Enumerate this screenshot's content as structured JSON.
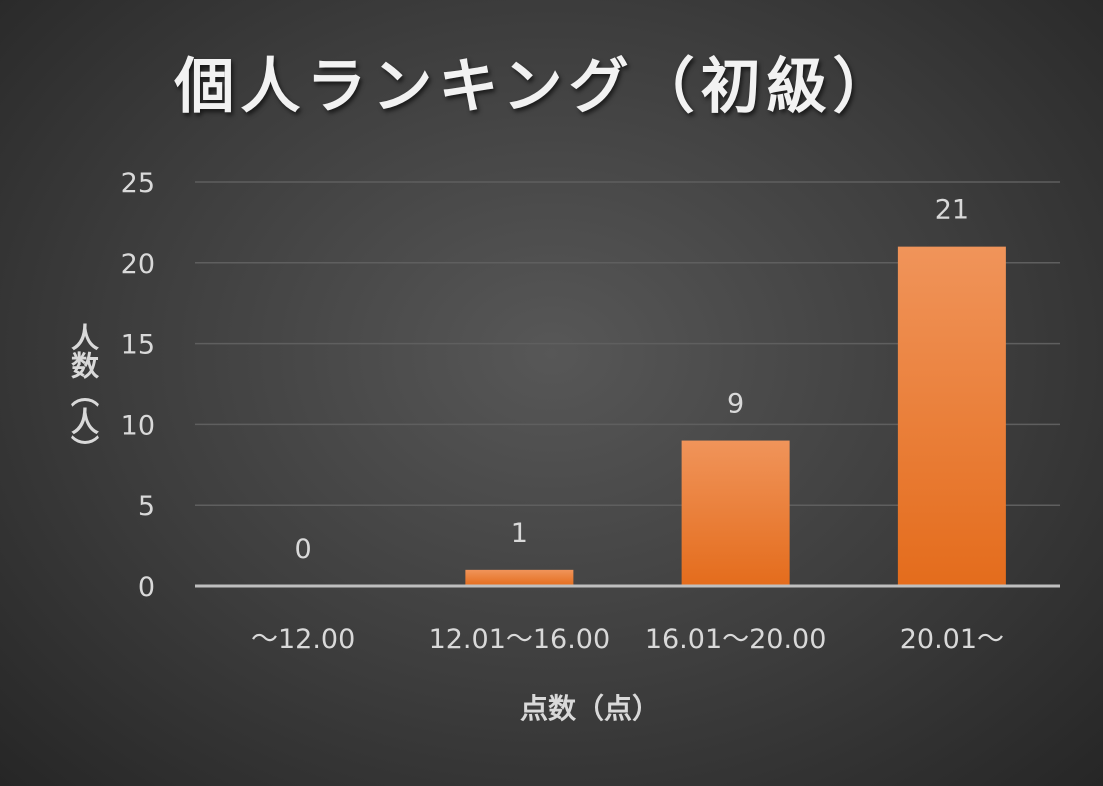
{
  "chart_data": {
    "type": "bar",
    "title": "個人ランキング（初級）",
    "xlabel": "点数（点）",
    "ylabel": "人数（人）",
    "categories": [
      "～12.00",
      "12.01～16.00",
      "16.01～20.00",
      "20.01～"
    ],
    "values": [
      0,
      1,
      9,
      21
    ],
    "data_labels": [
      "0",
      "1",
      "9",
      "21"
    ],
    "ylim": [
      0,
      25
    ],
    "yticks": [
      0,
      5,
      10,
      15,
      20,
      25
    ],
    "grid": true,
    "legend": "none",
    "colors": {
      "bar_top": "#f0945a",
      "bar_bottom": "#e46c1c",
      "gridline": "#5f5f5f",
      "axis": "#bfbfbf"
    }
  }
}
